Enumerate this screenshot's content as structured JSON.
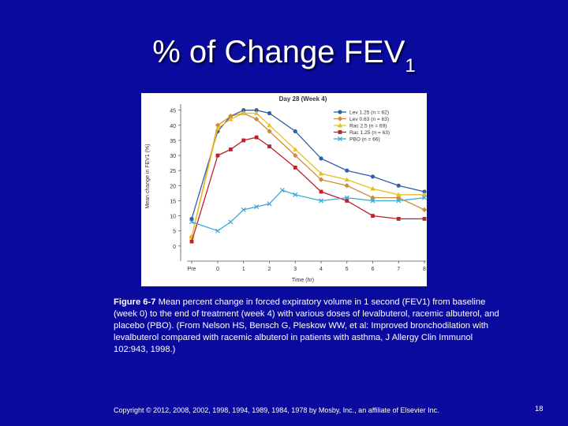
{
  "slide": {
    "title_main": "% of Change FEV",
    "title_sub": "1",
    "caption_label": "Figure 6-7",
    "caption_text": "Mean percent change in forced expiratory volume in 1 second (FEV1) from baseline (week 0) to the end of treatment (week 4) with various doses of levalbuterol, racemic albuterol, and placebo (PBO). (From Nelson HS, Bensch G, Pleskow WW, et al: Improved bronchodilation with levalbuterol compared with racemic albuterol in patients with asthma, J Allergy Clin Immunol 102:943, 1998.)",
    "copyright": "Copyright © 2012, 2008, 2002, 1998, 1994, 1989, 1984, 1978 by Mosby, Inc., an affiliate of Elsevier Inc.",
    "page_number": "18",
    "background_color": "#0a0a9e"
  },
  "chart_data": {
    "type": "line",
    "title": "Day 28 (Week 4)",
    "xlabel": "Time (hr)",
    "ylabel": "Mean change in FEV1 (%)",
    "categories": [
      "Pre",
      "0",
      "1",
      "2",
      "3",
      "4",
      "5",
      "6",
      "7",
      "8"
    ],
    "x_positions": [
      "Pre",
      0,
      0.5,
      1,
      1.5,
      2,
      3,
      4,
      5,
      6,
      7,
      8
    ],
    "ylim": [
      -5,
      47
    ],
    "yticks": [
      0,
      5,
      10,
      15,
      20,
      25,
      30,
      35,
      40,
      45
    ],
    "grid": false,
    "legend_position": "top-right",
    "series": [
      {
        "name": "Lev 1.25 (n = 62)",
        "color": "#2f5fa8",
        "marker": "circle",
        "points": [
          [
            "Pre",
            9
          ],
          [
            0,
            38
          ],
          [
            0.5,
            43
          ],
          [
            1,
            45
          ],
          [
            1.5,
            45
          ],
          [
            2,
            44
          ],
          [
            3,
            38
          ],
          [
            4,
            29
          ],
          [
            5,
            25
          ],
          [
            6,
            23
          ],
          [
            7,
            20
          ],
          [
            8,
            18
          ]
        ]
      },
      {
        "name": "Lev 0.63 (n = 63)",
        "color": "#d08a3a",
        "marker": "diamond",
        "points": [
          [
            "Pre",
            3
          ],
          [
            0,
            40
          ],
          [
            0.5,
            43
          ],
          [
            1,
            44
          ],
          [
            1.5,
            42
          ],
          [
            2,
            38
          ],
          [
            3,
            30
          ],
          [
            4,
            22
          ],
          [
            5,
            20
          ],
          [
            6,
            16
          ],
          [
            7,
            16
          ],
          [
            8,
            12
          ]
        ]
      },
      {
        "name": "Rac 2.5 (n = 69)",
        "color": "#e8c020",
        "marker": "triangle",
        "points": [
          [
            "Pre",
            3
          ],
          [
            0,
            39
          ],
          [
            0.5,
            42
          ],
          [
            1,
            44
          ],
          [
            1.5,
            44
          ],
          [
            2,
            40
          ],
          [
            3,
            32
          ],
          [
            4,
            24
          ],
          [
            5,
            22
          ],
          [
            6,
            19
          ],
          [
            7,
            17
          ],
          [
            8,
            17
          ]
        ]
      },
      {
        "name": "Rac 1.25 (n = 63)",
        "color": "#c0202a",
        "marker": "square",
        "points": [
          [
            "Pre",
            1.5
          ],
          [
            0,
            30
          ],
          [
            0.5,
            32
          ],
          [
            1,
            35
          ],
          [
            1.5,
            36
          ],
          [
            2,
            33
          ],
          [
            3,
            26
          ],
          [
            4,
            18
          ],
          [
            5,
            15
          ],
          [
            6,
            10
          ],
          [
            7,
            9
          ],
          [
            8,
            9
          ]
        ]
      },
      {
        "name": "PBO (n = 66)",
        "color": "#3aa8d8",
        "marker": "x",
        "points": [
          [
            "Pre",
            8
          ],
          [
            0,
            5
          ],
          [
            0.5,
            8
          ],
          [
            1,
            12
          ],
          [
            1.5,
            13
          ],
          [
            2,
            14
          ],
          [
            2.5,
            18.5
          ],
          [
            3,
            17
          ],
          [
            4,
            15
          ],
          [
            5,
            16
          ],
          [
            6,
            15
          ],
          [
            7,
            15
          ],
          [
            8,
            16
          ]
        ]
      }
    ]
  }
}
